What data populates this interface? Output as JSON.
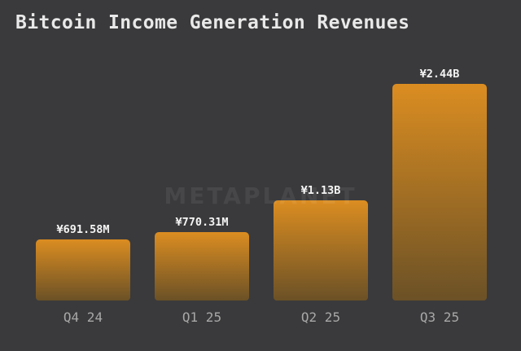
{
  "title": "Bitcoin Income Generation Revenues",
  "watermark": {
    "text": "METAPLANET"
  },
  "colors": {
    "background": "#3A3A3C",
    "title_text": "#E9E9E9",
    "value_label_text": "#F5F5F5",
    "tick_label_text": "#A8A8A8",
    "watermark_text": "#474749",
    "bar_gradient_top": "#DB8D21",
    "bar_gradient_bottom": "#6B5126"
  },
  "chart_data": {
    "type": "bar",
    "title": "Bitcoin Income Generation Revenues",
    "categories": [
      "Q4 24",
      "Q1 25",
      "Q2 25",
      "Q3 25"
    ],
    "values_millions_jpy": [
      691.58,
      770.31,
      1130,
      2440
    ],
    "value_labels": [
      "¥691.58M",
      "¥770.31M",
      "¥1.13B",
      "¥2.44B"
    ],
    "currency": "JPY",
    "xlabel": "",
    "ylabel": "",
    "ylim": [
      0,
      2560
    ],
    "grid": false,
    "legend": null,
    "bar_color_gradient": [
      "#DB8D21",
      "#6B5126"
    ]
  }
}
